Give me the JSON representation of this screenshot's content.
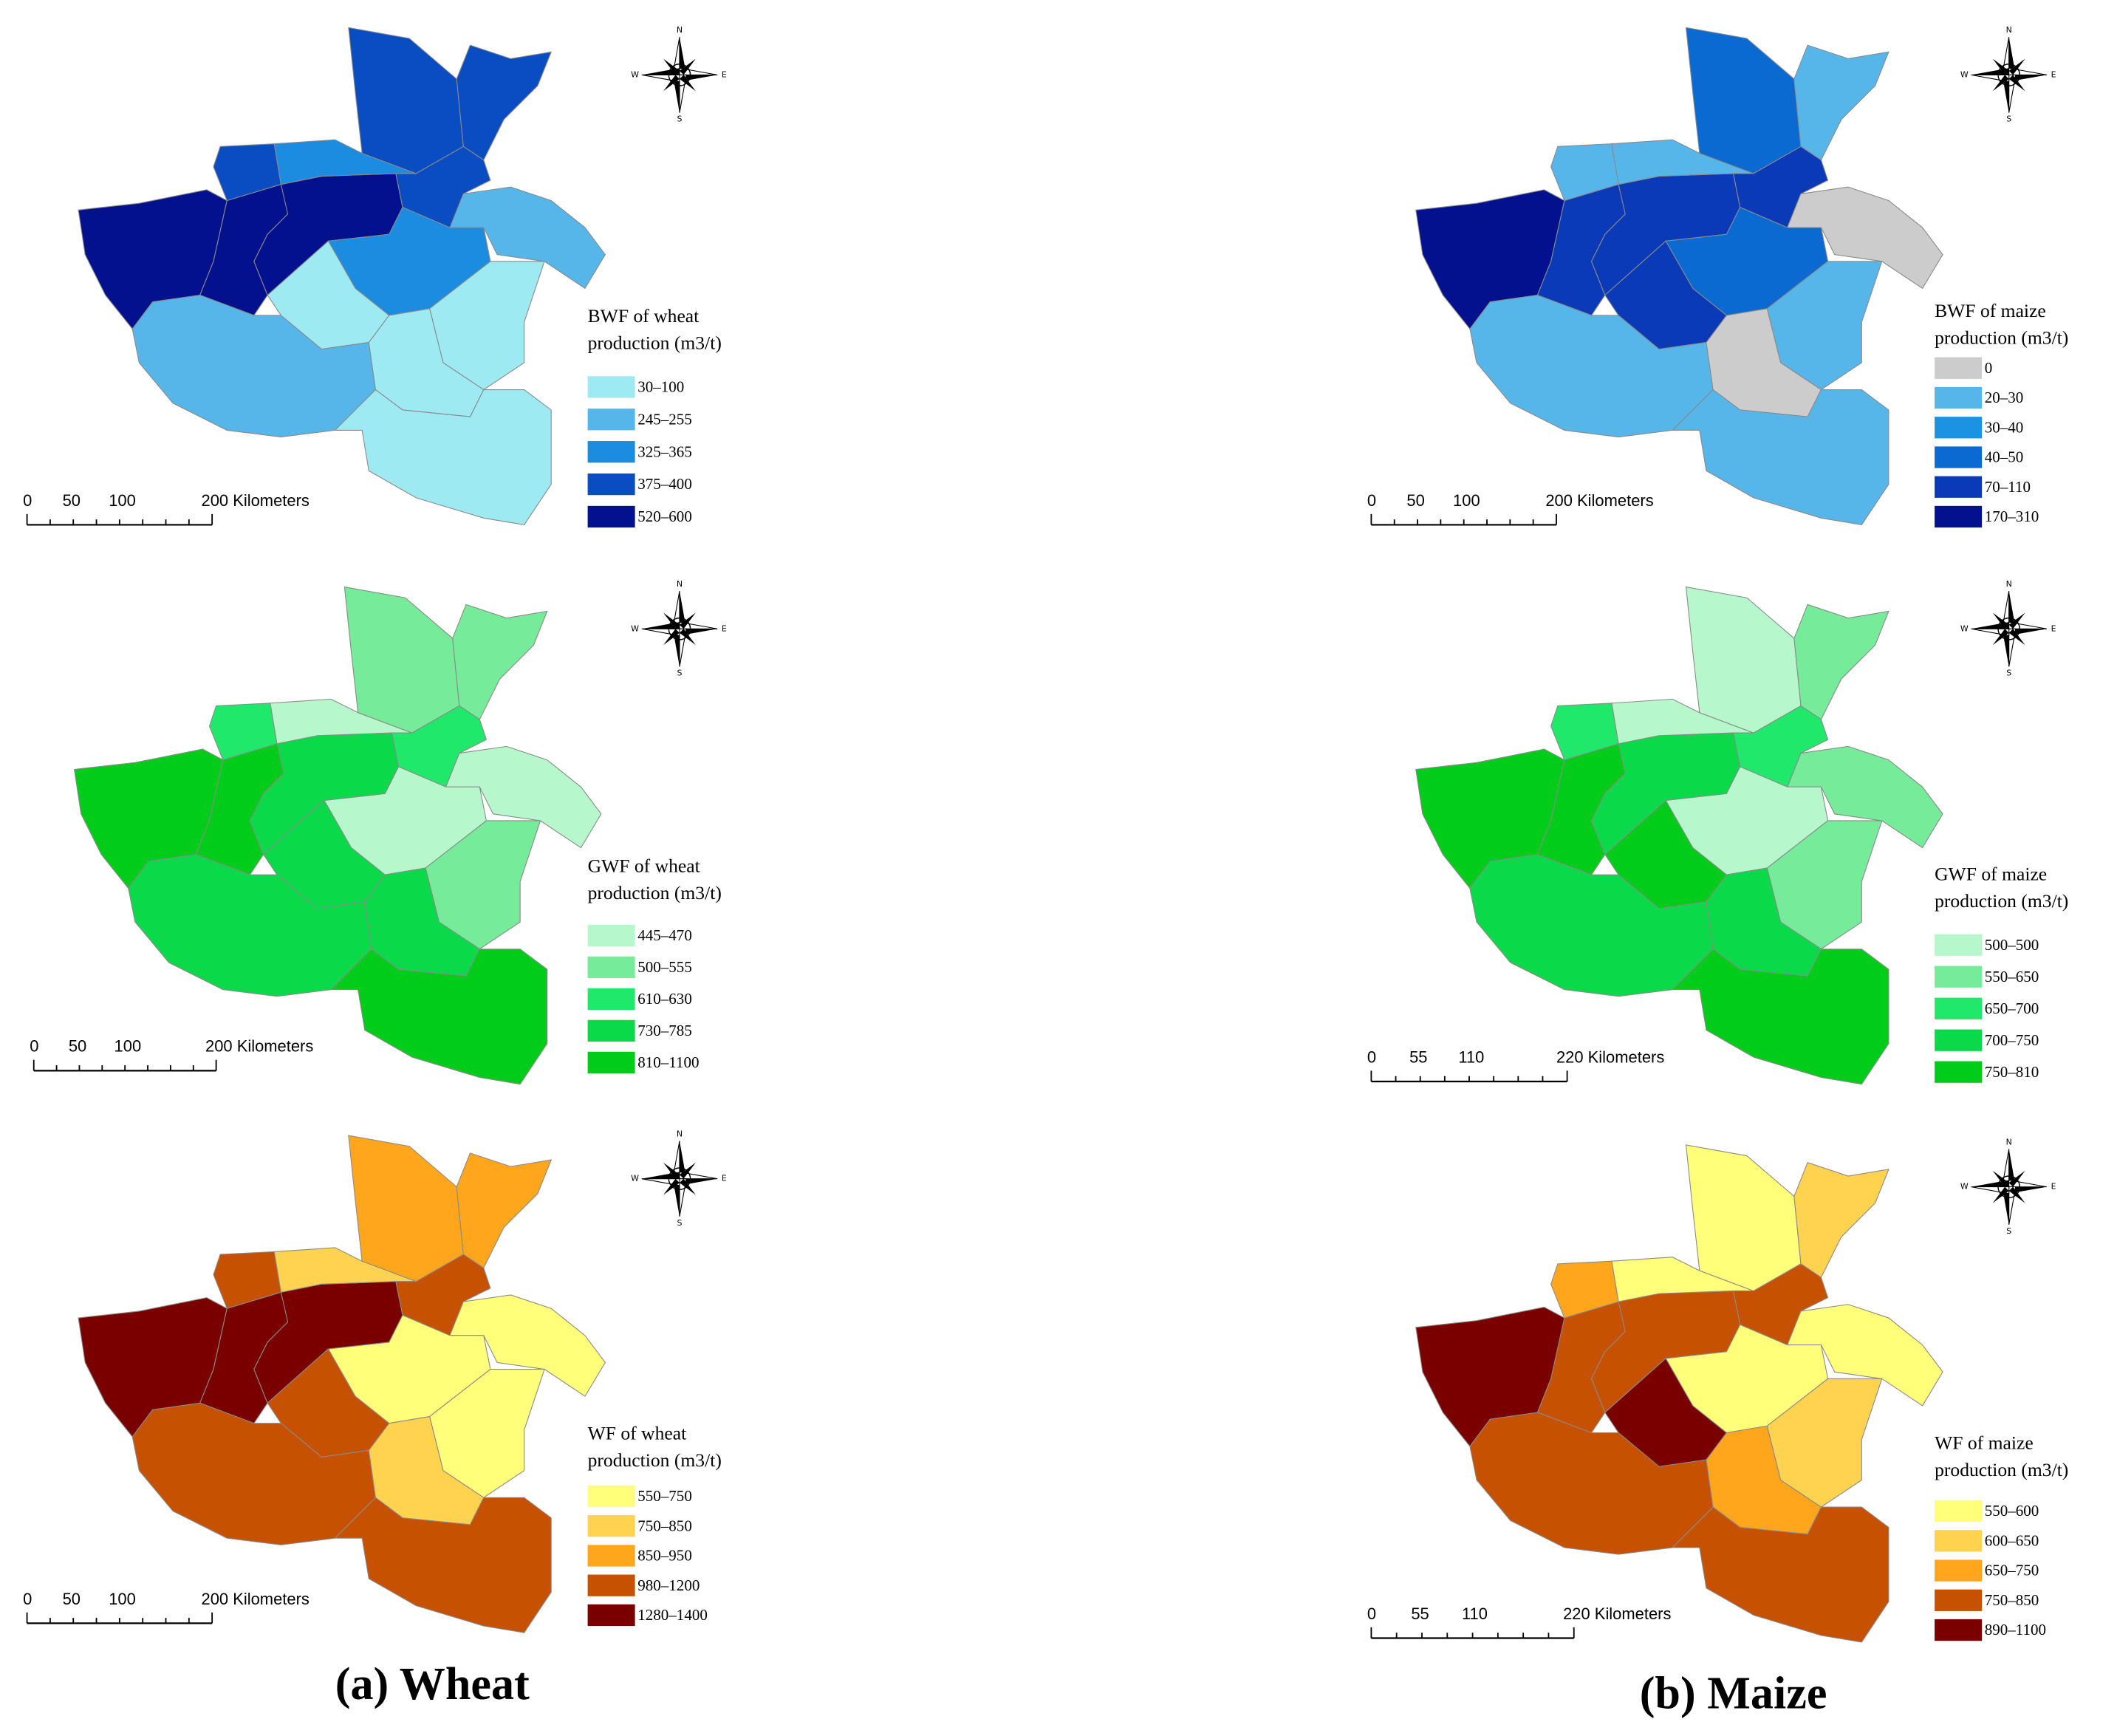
{
  "panels": [
    {
      "legend": {
        "title": [
          "BWF of wheat",
          "production (m3/t)"
        ],
        "items": [
          {
            "label": "30–100",
            "color": "#9eeaf2"
          },
          {
            "label": "245–255",
            "color": "#56b6ea"
          },
          {
            "label": "325–365",
            "color": "#1c8ce0"
          },
          {
            "label": "375–400",
            "color": "#0a4cc2"
          },
          {
            "label": "520–600",
            "color": "#03118f"
          }
        ]
      },
      "scale_bar": {
        "labels": [
          "0",
          "50",
          "100",
          "200 Kilometers"
        ]
      },
      "compass": {
        "n": "N",
        "w": "W",
        "e": "E",
        "s": "S"
      }
    },
    {
      "legend": {
        "title": [
          "BWF of maize",
          "production (m3/t)"
        ],
        "items": [
          {
            "label": "0",
            "color": "#cccccc"
          },
          {
            "label": "20–30",
            "color": "#56b6ea"
          },
          {
            "label": "30–40",
            "color": "#1c92e2"
          },
          {
            "label": "40–50",
            "color": "#0a6ad2"
          },
          {
            "label": "70–110",
            "color": "#0a3ab8"
          },
          {
            "label": "170–310",
            "color": "#03118f"
          }
        ]
      },
      "scale_bar": {
        "labels": [
          "0",
          "50",
          "100",
          "200 Kilometers"
        ]
      },
      "compass": {
        "n": "N",
        "w": "W",
        "e": "E",
        "s": "S"
      }
    },
    {
      "legend": {
        "title": [
          "GWF of wheat",
          "production (m3/t)"
        ],
        "items": [
          {
            "label": "445–470",
            "color": "#b6f8cb"
          },
          {
            "label": "500–555",
            "color": "#76eb9a"
          },
          {
            "label": "610–630",
            "color": "#20e86a"
          },
          {
            "label": "730–785",
            "color": "#0ad94a"
          },
          {
            "label": "810–1100",
            "color": "#02cc1a"
          }
        ]
      },
      "scale_bar": {
        "labels": [
          "0",
          "50",
          "100",
          "200 Kilometers"
        ]
      },
      "compass": {
        "n": "N",
        "w": "W",
        "e": "E",
        "s": "S"
      }
    },
    {
      "legend": {
        "title": [
          "GWF of maize",
          "production (m3/t)"
        ],
        "items": [
          {
            "label": "500–500",
            "color": "#b6f8cb"
          },
          {
            "label": "550–650",
            "color": "#76eb9a"
          },
          {
            "label": "650–700",
            "color": "#20e86a"
          },
          {
            "label": "700–750",
            "color": "#0ad94a"
          },
          {
            "label": "750–810",
            "color": "#02cc1a"
          }
        ]
      },
      "scale_bar": {
        "labels": [
          "0",
          "55",
          "110",
          "220 Kilometers"
        ]
      },
      "compass": {
        "n": "N",
        "w": "W",
        "e": "E",
        "s": "S"
      }
    },
    {
      "legend": {
        "title": [
          "WF of wheat",
          "production (m3/t)"
        ],
        "items": [
          {
            "label": "550–750",
            "color": "#ffff7a"
          },
          {
            "label": "750–850",
            "color": "#ffd250"
          },
          {
            "label": "850–950",
            "color": "#ffa61c"
          },
          {
            "label": "980–1200",
            "color": "#c65100"
          },
          {
            "label": "1280–1400",
            "color": "#7a0000"
          }
        ]
      },
      "scale_bar": {
        "labels": [
          "0",
          "50",
          "100",
          "200 Kilometers"
        ]
      },
      "compass": {
        "n": "N",
        "w": "W",
        "e": "E",
        "s": "S"
      }
    },
    {
      "legend": {
        "title": [
          "WF of maize",
          "production (m3/t)"
        ],
        "items": [
          {
            "label": "550–600",
            "color": "#ffff7a"
          },
          {
            "label": "600–650",
            "color": "#ffd250"
          },
          {
            "label": "650–750",
            "color": "#ffa61c"
          },
          {
            "label": "750–850",
            "color": "#c65100"
          },
          {
            "label": "890–1100",
            "color": "#7a0000"
          }
        ]
      },
      "scale_bar": {
        "labels": [
          "0",
          "55",
          "110",
          "220 Kilometers"
        ]
      },
      "compass": {
        "n": "N",
        "w": "W",
        "e": "E",
        "s": "S"
      }
    }
  ],
  "captions": [
    "(a) Wheat",
    "(b) Maize"
  ]
}
